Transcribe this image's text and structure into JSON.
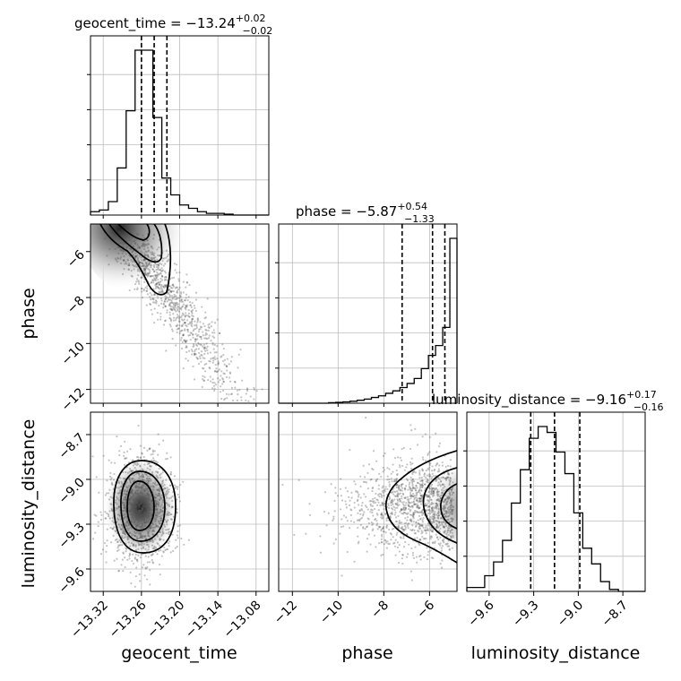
{
  "chart_data": {
    "type": "corner",
    "parameters": [
      "geocent_time",
      "phase",
      "luminosity_distance"
    ],
    "titles": [
      {
        "param": "geocent_time",
        "text": "geocent_time = −13.24",
        "plus": "+0.02",
        "minus": "−0.02",
        "median": -13.24,
        "q_low": -13.26,
        "q_high": -13.22
      },
      {
        "param": "phase",
        "text": "phase = −5.87",
        "plus": "+0.54",
        "minus": "−1.33",
        "median": -5.87,
        "q_low": -7.2,
        "q_high": -5.33
      },
      {
        "param": "luminosity_distance",
        "text": "luminosity_distance = −9.16",
        "plus": "+0.17",
        "minus": "−0.16",
        "median": -9.16,
        "q_low": -9.32,
        "q_high": -8.99
      }
    ],
    "ranges": {
      "geocent_time": [
        -13.34,
        -13.06
      ],
      "phase": [
        -12.6,
        -4.8
      ],
      "luminosity_distance": [
        -9.75,
        -8.55
      ]
    },
    "ticks": {
      "geocent_time": [
        "−13.32",
        "−13.26",
        "−13.20",
        "−13.14",
        "−13.08"
      ],
      "phase_x": [
        "−12",
        "−10",
        "−8",
        "−6"
      ],
      "phase_y": [
        "−6",
        "−8",
        "−10",
        "−12"
      ],
      "luminosity_distance_x": [
        "−9.6",
        "−9.3",
        "−9.0",
        "−8.7"
      ],
      "luminosity_distance_y": [
        "−8.7",
        "−9.0",
        "−9.3",
        "−9.6"
      ]
    },
    "tick_values": {
      "geocent_time": [
        -13.32,
        -13.26,
        -13.2,
        -13.14,
        -13.08
      ],
      "phase_x": [
        -12,
        -10,
        -8,
        -6
      ],
      "phase_y": [
        -6,
        -8,
        -10,
        -12
      ],
      "luminosity_distance_x": [
        -9.6,
        -9.3,
        -9.0,
        -8.7
      ],
      "luminosity_distance_y": [
        -8.7,
        -9.0,
        -9.3,
        -9.6
      ]
    },
    "histograms": {
      "geocent_time": [
        0.02,
        0.03,
        0.08,
        0.28,
        0.62,
        0.98,
        0.98,
        0.58,
        0.22,
        0.12,
        0.06,
        0.04,
        0.02,
        0.01,
        0.01,
        0.005,
        0.0,
        0.0,
        0.0,
        0.0
      ],
      "phase": [
        0.0,
        0.0,
        0.0,
        0.0,
        0.0,
        0.0,
        0.0,
        0.003,
        0.005,
        0.008,
        0.012,
        0.018,
        0.025,
        0.035,
        0.045,
        0.06,
        0.075,
        0.095,
        0.12,
        0.15,
        0.21,
        0.29,
        0.35,
        0.46,
        1.0
      ],
      "luminosity_distance": [
        0.02,
        0.02,
        0.08,
        0.15,
        0.26,
        0.45,
        0.62,
        0.78,
        0.84,
        0.81,
        0.71,
        0.6,
        0.4,
        0.22,
        0.14,
        0.05,
        0.01,
        0.0,
        0.0,
        0.0
      ]
    },
    "grid": true
  },
  "axis_labels": {
    "x_geocent": "geocent_time",
    "x_phase": "phase",
    "x_lum": "luminosity_distance",
    "y_phase": "phase",
    "y_lum": "luminosity_distance"
  }
}
